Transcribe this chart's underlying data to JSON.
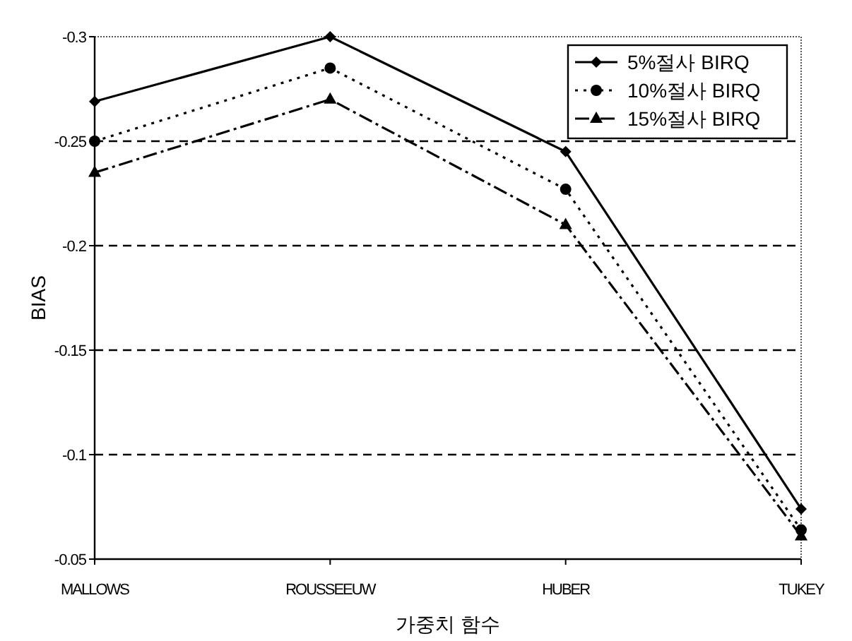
{
  "chart_data": {
    "type": "line",
    "xlabel": "가중치 함수",
    "ylabel": "BIAS",
    "categories": [
      "MALLOWS",
      "ROUSSEEUW",
      "HUBER",
      "TUKEY"
    ],
    "ylim": [
      -0.05,
      -0.3
    ],
    "yticks": [
      -0.3,
      -0.25,
      -0.2,
      -0.15,
      -0.1,
      -0.05
    ],
    "grid": "y",
    "legend": "top right",
    "series": [
      {
        "name": "5%절사 BIRQ",
        "color": "#000000",
        "marker": "diamond",
        "line_style": "solid",
        "values": [
          -0.269,
          -0.3,
          -0.245,
          -0.074
        ]
      },
      {
        "name": "10%절사 BIRQ",
        "color": "#000000",
        "marker": "circle",
        "line_style": "dotted",
        "values": [
          -0.25,
          -0.285,
          -0.227,
          -0.064
        ]
      },
      {
        "name": "15%절사 BIRQ",
        "color": "#000000",
        "marker": "triangle",
        "line_style": "dashed",
        "values": [
          -0.235,
          -0.27,
          -0.21,
          -0.061
        ]
      }
    ]
  }
}
